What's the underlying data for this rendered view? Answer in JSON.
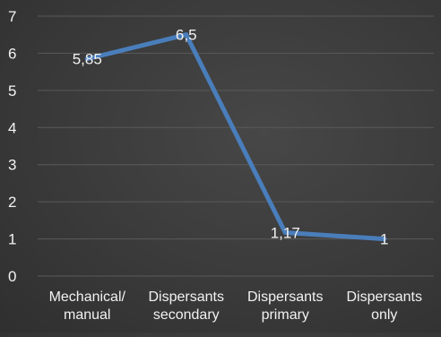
{
  "chart_data": {
    "type": "line",
    "categories": [
      [
        "Mechanical/",
        "manual"
      ],
      [
        "Dispersants",
        "secondary"
      ],
      [
        "Dispersants",
        "primary"
      ],
      [
        "Dispersants",
        "only"
      ]
    ],
    "series": [
      {
        "values": [
          5.85,
          6.5,
          1.17,
          1
        ],
        "data_labels": [
          "5,85",
          "6,5",
          "1,17",
          "1"
        ],
        "color": "#4a7ebb"
      }
    ],
    "ylim": [
      0,
      7
    ],
    "yticks": [
      "0",
      "1",
      "2",
      "3",
      "4",
      "5",
      "6",
      "7"
    ],
    "grid": true,
    "legend": "none",
    "colors": {
      "background": "#3a3a3a",
      "gridline": "#5a5a5a",
      "text": "#f2f2f2"
    }
  }
}
